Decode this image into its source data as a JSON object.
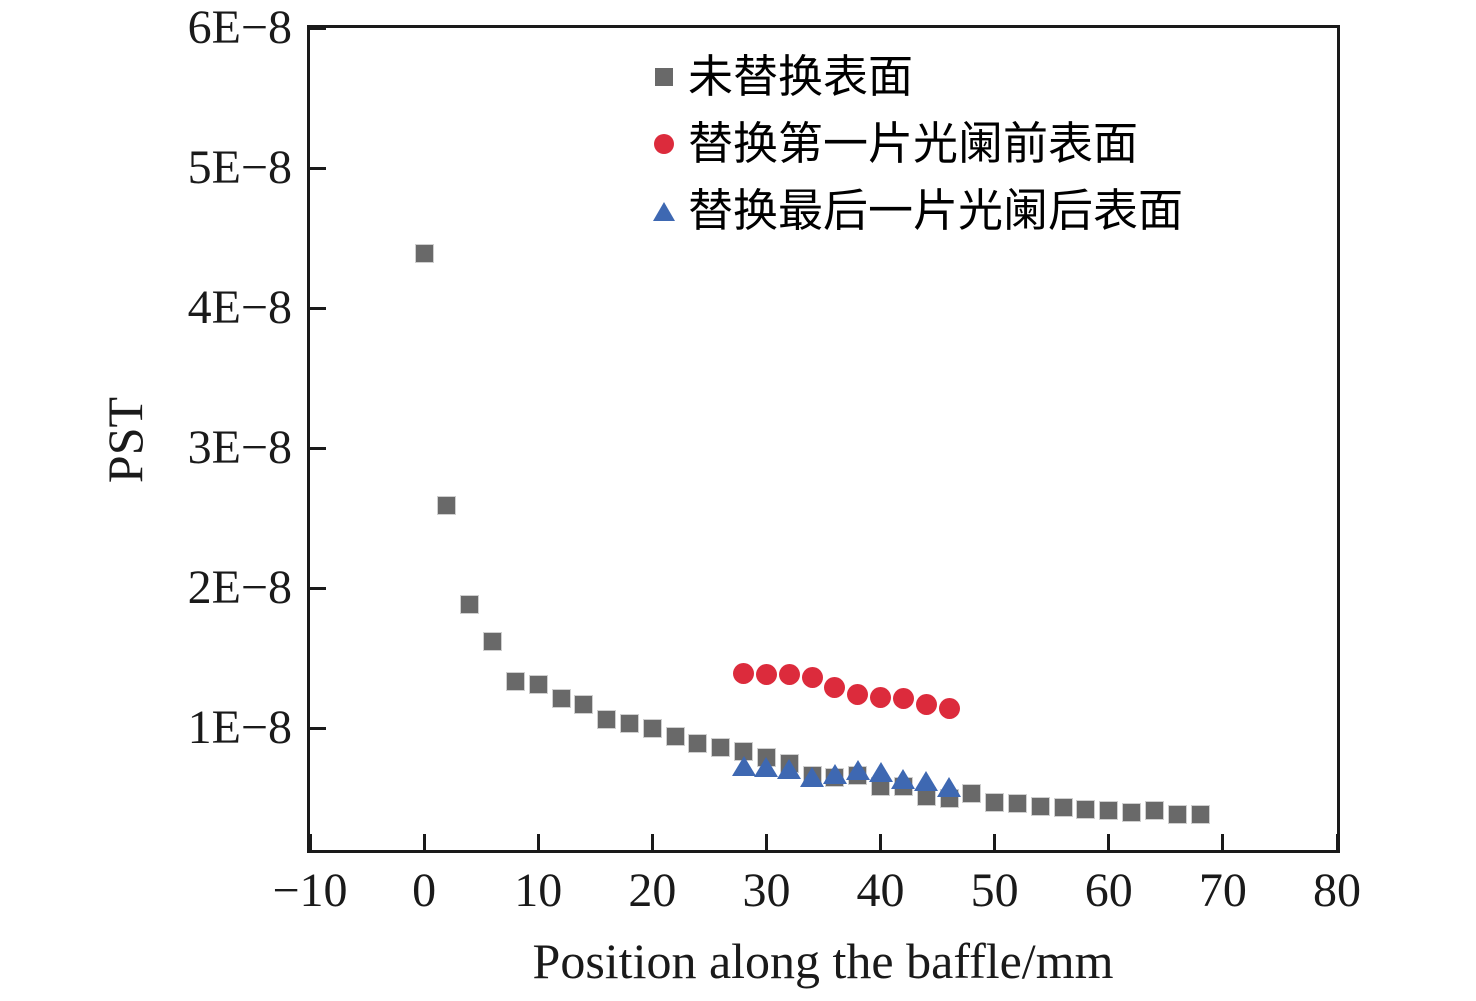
{
  "chart_data": {
    "type": "scatter",
    "title": "",
    "xlabel": "Position along the baffle/mm",
    "ylabel": "PST",
    "xlim": [
      -10,
      80
    ],
    "ylim_e8": [
      0.13,
      6
    ],
    "grid": false,
    "legend_position": "top-center-inside",
    "y_unit_note": "y values given in units of 1E-8 (PST)",
    "x_tick_values": [
      -10,
      0,
      10,
      20,
      30,
      40,
      50,
      60,
      70,
      80
    ],
    "x_tick_labels": [
      "−10",
      "0",
      "10",
      "20",
      "30",
      "40",
      "50",
      "60",
      "70",
      "80"
    ],
    "y_tick_values_e8": [
      1,
      2,
      3,
      4,
      5,
      6
    ],
    "y_tick_labels": [
      "1E−8",
      "2E−8",
      "3E−8",
      "4E−8",
      "5E−8",
      "6E−8"
    ],
    "series": [
      {
        "name": "未替换表面",
        "marker": "square",
        "color": "#696969",
        "points_e8": [
          [
            0,
            4.39
          ],
          [
            2,
            2.59
          ],
          [
            4,
            1.88
          ],
          [
            6,
            1.62
          ],
          [
            8,
            1.33
          ],
          [
            10,
            1.31
          ],
          [
            12,
            1.21
          ],
          [
            14,
            1.17
          ],
          [
            16,
            1.06
          ],
          [
            18,
            1.03
          ],
          [
            20,
            1.0
          ],
          [
            22,
            0.94
          ],
          [
            24,
            0.89
          ],
          [
            26,
            0.86
          ],
          [
            28,
            0.83
          ],
          [
            30,
            0.79
          ],
          [
            32,
            0.75
          ],
          [
            34,
            0.66
          ],
          [
            36,
            0.65
          ],
          [
            38,
            0.66
          ],
          [
            40,
            0.58
          ],
          [
            42,
            0.58
          ],
          [
            44,
            0.51
          ],
          [
            46,
            0.5
          ],
          [
            48,
            0.53
          ],
          [
            50,
            0.47
          ],
          [
            52,
            0.46
          ],
          [
            54,
            0.44
          ],
          [
            56,
            0.43
          ],
          [
            58,
            0.42
          ],
          [
            60,
            0.41
          ],
          [
            62,
            0.4
          ],
          [
            64,
            0.41
          ],
          [
            66,
            0.38
          ],
          [
            68,
            0.38
          ]
        ]
      },
      {
        "name": "替换第一片光阑前表面",
        "marker": "circle",
        "color": "#DC2B3C",
        "points_e8": [
          [
            28,
            1.39
          ],
          [
            30,
            1.38
          ],
          [
            32,
            1.38
          ],
          [
            34,
            1.36
          ],
          [
            36,
            1.29
          ],
          [
            38,
            1.24
          ],
          [
            40,
            1.22
          ],
          [
            42,
            1.21
          ],
          [
            44,
            1.17
          ],
          [
            46,
            1.14
          ]
        ]
      },
      {
        "name": "替换最后一片光阑后表面",
        "marker": "triangle",
        "color": "#3E68B2",
        "points_e8": [
          [
            28,
            0.73
          ],
          [
            30,
            0.72
          ],
          [
            32,
            0.71
          ],
          [
            34,
            0.65
          ],
          [
            36,
            0.67
          ],
          [
            38,
            0.7
          ],
          [
            40,
            0.69
          ],
          [
            42,
            0.64
          ],
          [
            44,
            0.62
          ],
          [
            46,
            0.58
          ]
        ]
      }
    ]
  }
}
